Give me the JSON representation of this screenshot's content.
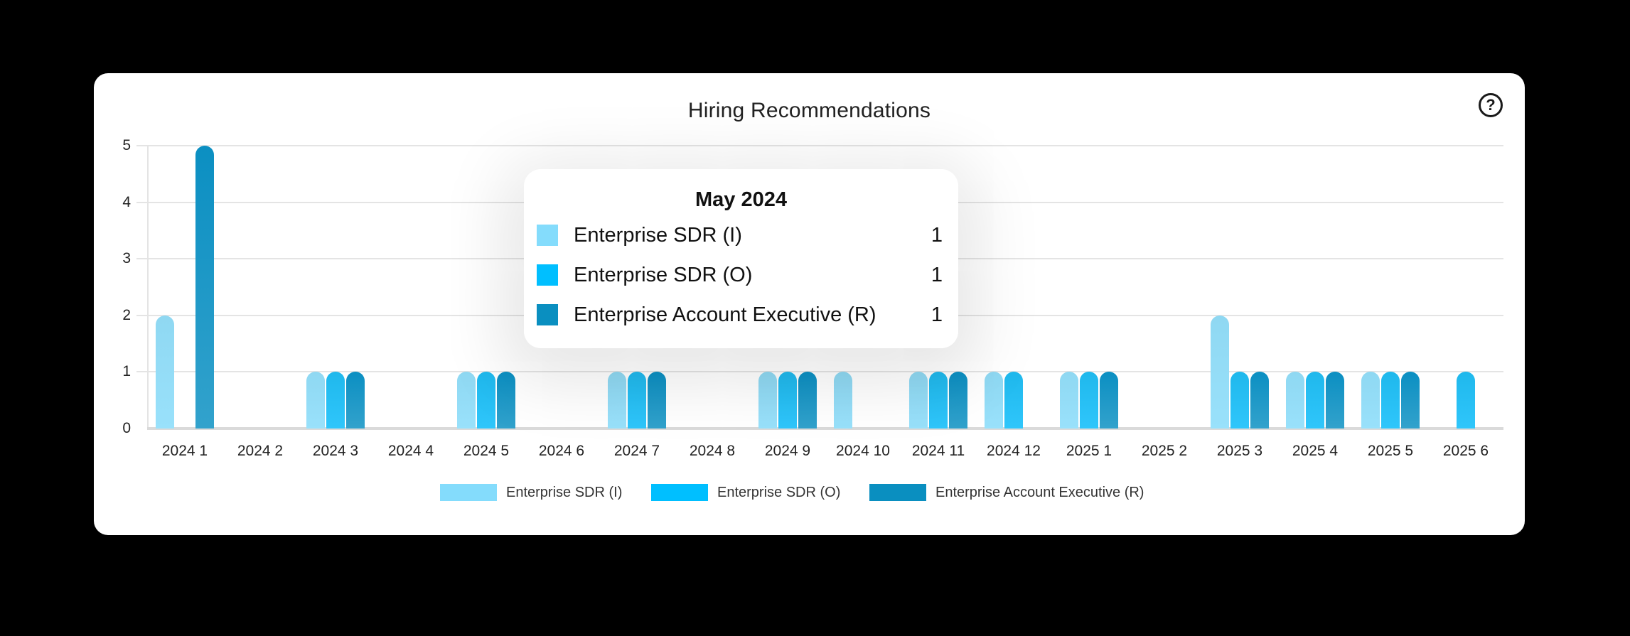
{
  "card": {
    "title": "Hiring Recommendations",
    "help_icon": "?"
  },
  "chart_data": {
    "type": "bar",
    "title": "Hiring Recommendations",
    "xlabel": "",
    "ylabel": "",
    "ylim": [
      0,
      5
    ],
    "yticks": [
      "0",
      "1",
      "2",
      "3",
      "4",
      "5"
    ],
    "grid": true,
    "legend_position": "bottom",
    "categories": [
      "2024 1",
      "2024 2",
      "2024 3",
      "2024 4",
      "2024 5",
      "2024 6",
      "2024 7",
      "2024 8",
      "2024 9",
      "2024 10",
      "2024 11",
      "2024 12",
      "2025 1",
      "2025 2",
      "2025 3",
      "2025 4",
      "2025 5",
      "2025 6"
    ],
    "series": [
      {
        "name": "Enterprise SDR (I)",
        "color": "#84dcfc",
        "values": [
          2,
          0,
          1,
          0,
          1,
          0,
          1,
          0,
          1,
          1,
          1,
          1,
          1,
          0,
          2,
          1,
          1,
          0
        ]
      },
      {
        "name": "Enterprise SDR (O)",
        "color": "#00bfff",
        "values": [
          0,
          0,
          1,
          0,
          1,
          0,
          1,
          0,
          1,
          0,
          1,
          1,
          1,
          0,
          1,
          1,
          1,
          1
        ]
      },
      {
        "name": "Enterprise Account Executive (R)",
        "color": "#0a8fc0",
        "values": [
          5,
          0,
          1,
          0,
          1,
          0,
          1,
          0,
          1,
          0,
          1,
          0,
          1,
          0,
          1,
          1,
          1,
          0
        ]
      }
    ]
  },
  "legend": [
    {
      "label": "Enterprise SDR (I)",
      "color": "#84dcfc"
    },
    {
      "label": "Enterprise SDR (O)",
      "color": "#00bfff"
    },
    {
      "label": "Enterprise Account Executive (R)",
      "color": "#0a8fc0"
    }
  ],
  "tooltip": {
    "title": "May 2024",
    "rows": [
      {
        "label": "Enterprise SDR (I)",
        "value": "1",
        "color": "#84dcfc"
      },
      {
        "label": "Enterprise SDR (O)",
        "value": "1",
        "color": "#00bfff"
      },
      {
        "label": "Enterprise Account Executive (R)",
        "value": "1",
        "color": "#0a8fc0"
      }
    ]
  }
}
